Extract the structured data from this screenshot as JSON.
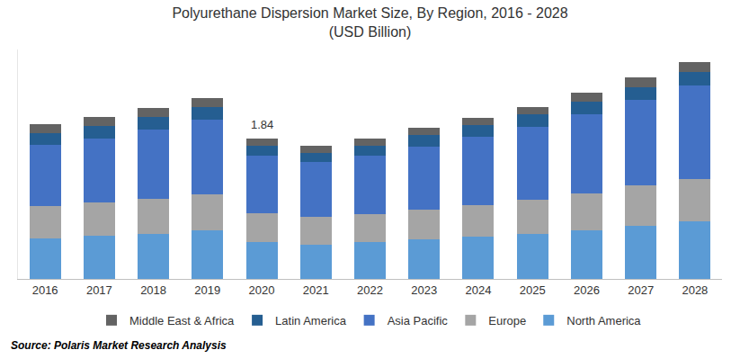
{
  "chart_data": {
    "type": "bar",
    "title": "Polyurethane Dispersion Market Size, By Region, 2016 - 2028",
    "subtitle": "(USD Billion)",
    "categories": [
      "2016",
      "2017",
      "2018",
      "2019",
      "2020",
      "2021",
      "2022",
      "2023",
      "2024",
      "2025",
      "2026",
      "2027",
      "2028"
    ],
    "series": [
      {
        "name": "North America",
        "color": "#5b9bd5",
        "values": [
          0.53,
          0.56,
          0.59,
          0.63,
          0.48,
          0.45,
          0.48,
          0.52,
          0.55,
          0.59,
          0.64,
          0.7,
          0.75
        ]
      },
      {
        "name": "Europe",
        "color": "#a5a5a5",
        "values": [
          0.42,
          0.44,
          0.46,
          0.48,
          0.38,
          0.36,
          0.37,
          0.39,
          0.42,
          0.45,
          0.48,
          0.52,
          0.56
        ]
      },
      {
        "name": "Asia Pacific",
        "color": "#4472c4",
        "values": [
          0.8,
          0.84,
          0.9,
          0.97,
          0.75,
          0.72,
          0.76,
          0.82,
          0.89,
          0.95,
          1.03,
          1.12,
          1.22
        ]
      },
      {
        "name": "Latin America",
        "color": "#255e91",
        "values": [
          0.16,
          0.16,
          0.17,
          0.17,
          0.13,
          0.12,
          0.13,
          0.15,
          0.15,
          0.16,
          0.17,
          0.17,
          0.18
        ]
      },
      {
        "name": "Middle East & Africa",
        "color": "#636363",
        "values": [
          0.11,
          0.12,
          0.12,
          0.12,
          0.1,
          0.09,
          0.1,
          0.1,
          0.1,
          0.1,
          0.11,
          0.12,
          0.12
        ]
      }
    ],
    "stacked": true,
    "ylim": [
      0,
      3.0
    ],
    "yticks": [],
    "tick_labels": "x",
    "grid": false,
    "legend": "bottom",
    "annotations": [
      {
        "x": "2020",
        "text": "1.84"
      },
      {
        "text": "Source: Polaris Market Research Analysis"
      }
    ]
  }
}
